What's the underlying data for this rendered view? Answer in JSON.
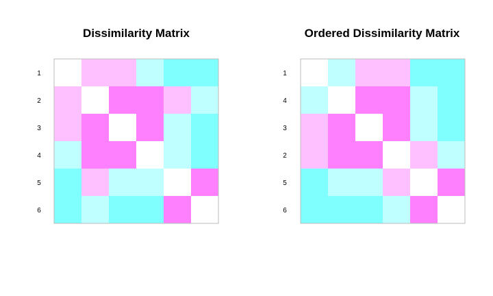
{
  "palette": {
    "diagonal": "#FFFFFF",
    "light_magenta": "#FFC0FF",
    "magenta": "#FF80FF",
    "light_cyan": "#C0FFFF",
    "cyan": "#80FFFF"
  },
  "chart_data": [
    {
      "type": "heatmap",
      "title": "Dissimilarity Matrix",
      "row_labels": [
        "1",
        "2",
        "3",
        "4",
        "5",
        "6"
      ],
      "colors": [
        [
          "diagonal",
          "light_magenta",
          "light_magenta",
          "light_cyan",
          "cyan",
          "cyan"
        ],
        [
          "light_magenta",
          "diagonal",
          "magenta",
          "magenta",
          "light_magenta",
          "light_cyan"
        ],
        [
          "light_magenta",
          "magenta",
          "diagonal",
          "magenta",
          "light_cyan",
          "cyan"
        ],
        [
          "light_cyan",
          "magenta",
          "magenta",
          "diagonal",
          "light_cyan",
          "cyan"
        ],
        [
          "cyan",
          "light_magenta",
          "light_cyan",
          "light_cyan",
          "diagonal",
          "magenta"
        ],
        [
          "cyan",
          "light_cyan",
          "cyan",
          "cyan",
          "magenta",
          "diagonal"
        ]
      ]
    },
    {
      "type": "heatmap",
      "title": "Ordered Dissimilarity Matrix",
      "row_labels": [
        "1",
        "4",
        "3",
        "2",
        "5",
        "6"
      ],
      "colors": [
        [
          "diagonal",
          "light_cyan",
          "light_magenta",
          "light_magenta",
          "cyan",
          "cyan"
        ],
        [
          "light_cyan",
          "diagonal",
          "magenta",
          "magenta",
          "light_cyan",
          "cyan"
        ],
        [
          "light_magenta",
          "magenta",
          "diagonal",
          "magenta",
          "light_cyan",
          "cyan"
        ],
        [
          "light_magenta",
          "magenta",
          "magenta",
          "diagonal",
          "light_magenta",
          "light_cyan"
        ],
        [
          "cyan",
          "light_cyan",
          "light_cyan",
          "light_magenta",
          "diagonal",
          "magenta"
        ],
        [
          "cyan",
          "cyan",
          "cyan",
          "light_cyan",
          "magenta",
          "diagonal"
        ]
      ]
    }
  ]
}
